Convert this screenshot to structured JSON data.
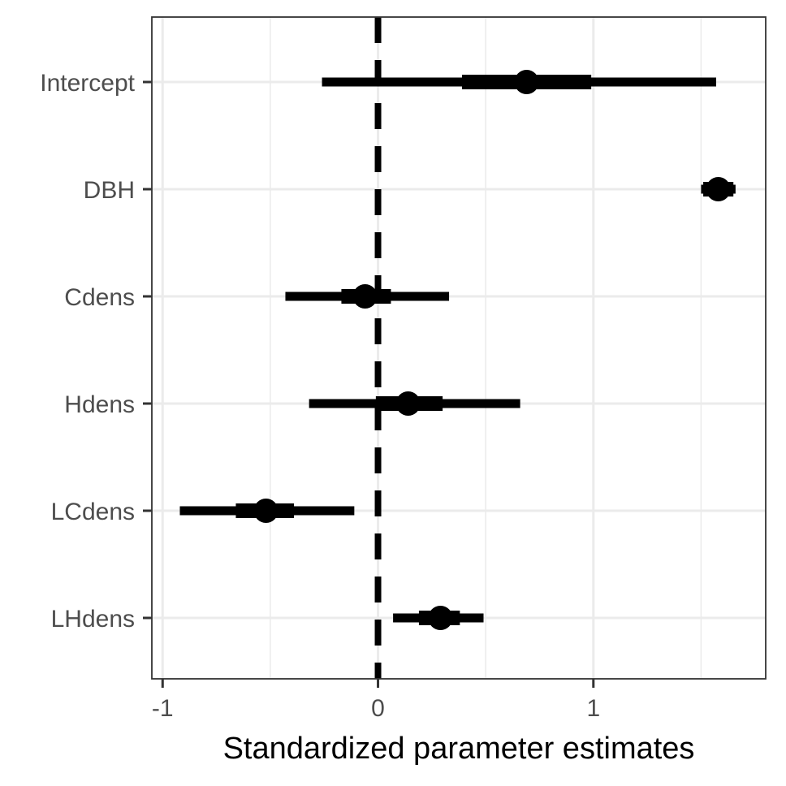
{
  "chart_data": {
    "type": "forest",
    "title": "",
    "xlabel": "Standardized parameter estimates",
    "ylabel": "",
    "xlim": [
      -1.05,
      1.8
    ],
    "x_ticks": [
      {
        "value": -1,
        "label": "-1"
      },
      {
        "value": 0,
        "label": "0"
      },
      {
        "value": 1,
        "label": "1"
      }
    ],
    "reference_line": {
      "x": 0,
      "style": "dashed"
    },
    "grid": true,
    "categories": [
      "Intercept",
      "DBH",
      "Cdens",
      "Hdens",
      "LCdens",
      "LHdens"
    ],
    "series": [
      {
        "estimates": [
          0.69,
          1.58,
          -0.06,
          0.14,
          -0.52,
          0.29
        ],
        "inner_interval_low": [
          0.39,
          1.51,
          -0.17,
          -0.01,
          -0.66,
          0.19
        ],
        "inner_interval_high": [
          0.99,
          1.65,
          0.06,
          0.3,
          -0.39,
          0.38
        ],
        "outer_interval_low": [
          -0.26,
          1.5,
          -0.43,
          -0.32,
          -0.92,
          0.07
        ],
        "outer_interval_high": [
          1.57,
          1.66,
          0.33,
          0.66,
          -0.11,
          0.49
        ]
      }
    ],
    "colors": {
      "marks": "#000000",
      "grid": "#ebebeb",
      "border": "#333333"
    }
  }
}
